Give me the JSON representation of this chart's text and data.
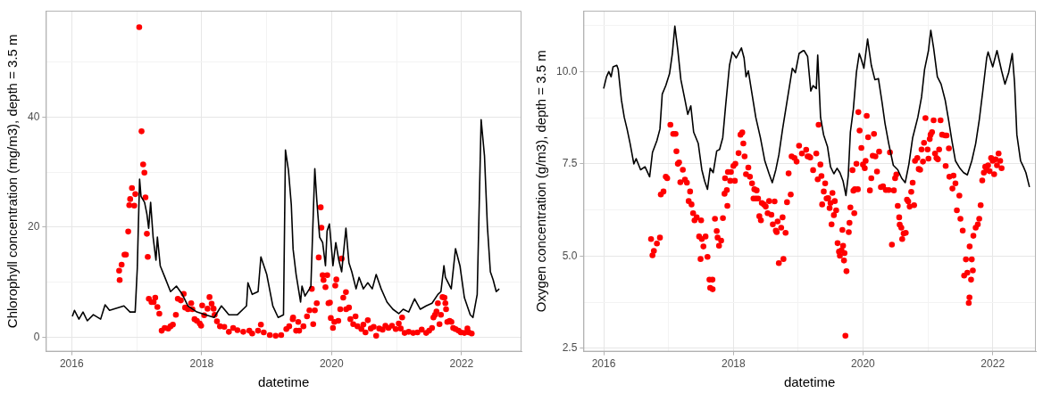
{
  "chart_data": [
    {
      "type": "line",
      "xlabel": "datetime",
      "ylabel": "Chlorophyll concentration (mg/m3), depth = 3.5 m",
      "xlim": [
        "2015-08-09",
        "2022-12-04"
      ],
      "ylim": [
        -2.6,
        59.3
      ],
      "xticks": [
        "2016",
        {
          "value": "2017",
          "label": null
        },
        "2018",
        {
          "value": "2019",
          "label": null
        },
        "2020",
        {
          "value": "2021",
          "label": null
        },
        "2022"
      ],
      "yticks": [
        0,
        {
          "value": 10,
          "label": null
        },
        20,
        {
          "value": 30,
          "label": null
        },
        40,
        {
          "value": 50,
          "label": null
        }
      ],
      "grid": true,
      "series": [
        {
          "type": "line",
          "color": "#000000",
          "marker": "none",
          "x": [
            "2016-01-05",
            "2016-01-17",
            "2016-02-11",
            "2016-03-05",
            "2016-03-29",
            "2016-05-02",
            "2016-06-12",
            "2016-07-07",
            "2016-08-01",
            "2016-09-19",
            "2016-10-21",
            "2016-11-24",
            "2016-12-23",
            "2017-01-04",
            "2017-01-17",
            "2017-01-25",
            "2017-02-14",
            "2017-02-27",
            "2017-03-09",
            "2017-03-20",
            "2017-04-03",
            "2017-04-19",
            "2017-04-27",
            "2017-05-13",
            "2017-06-08",
            "2017-07-10",
            "2017-08-12",
            "2017-09-14",
            "2017-10-16",
            "2017-12-05",
            "2018-01-23",
            "2018-03-12",
            "2018-04-22",
            "2018-06-03",
            "2018-07-21",
            "2018-09-10",
            "2018-09-18",
            "2018-10-12",
            "2018-11-14",
            "2018-11-30",
            "2019-01-02",
            "2019-02-05",
            "2019-03-07",
            "2019-04-06",
            "2019-04-17",
            "2019-05-04",
            "2019-05-20",
            "2019-05-30",
            "2019-06-16",
            "2019-07-11",
            "2019-07-19",
            "2019-08-05",
            "2019-08-30",
            "2019-09-07",
            "2019-09-16",
            "2019-09-29",
            "2019-10-10",
            "2019-10-26",
            "2019-11-12",
            "2019-11-28",
            "2019-12-07",
            "2019-12-20",
            "2020-01-01",
            "2020-01-09",
            "2020-01-25",
            "2020-02-11",
            "2020-02-27",
            "2020-03-22",
            "2020-04-08",
            "2020-04-24",
            "2020-05-18",
            "2020-06-04",
            "2020-06-28",
            "2020-07-23",
            "2020-08-17",
            "2020-09-08",
            "2020-10-06",
            "2020-11-08",
            "2020-12-11",
            "2021-01-13",
            "2021-02-07",
            "2021-03-10",
            "2021-04-12",
            "2021-05-14",
            "2021-06-16",
            "2021-07-19",
            "2021-08-21",
            "2021-09-07",
            "2021-09-24",
            "2021-10-02",
            "2021-11-04",
            "2021-11-28",
            "2021-12-23",
            "2022-01-17",
            "2022-02-19",
            "2022-03-06",
            "2022-03-30",
            "2022-04-21",
            "2022-05-10",
            "2022-05-26",
            "2022-06-12",
            "2022-06-28",
            "2022-07-15",
            "2022-08-01"
          ],
          "values": [
            3.8,
            4.9,
            3.3,
            4.6,
            3.0,
            4.1,
            3.3,
            5.9,
            4.9,
            5.4,
            5.7,
            4.6,
            4.6,
            12.5,
            28.7,
            25.6,
            24.5,
            22.4,
            19.8,
            24.5,
            18.2,
            14,
            18.2,
            13,
            10.9,
            8.3,
            9.3,
            7.8,
            5.7,
            4.6,
            4.1,
            3.6,
            5.7,
            4.1,
            4.1,
            5.7,
            9.9,
            7.8,
            8.3,
            14.6,
            11.4,
            5.7,
            3.6,
            4.1,
            34,
            30.3,
            24,
            16,
            11.4,
            6.4,
            9.3,
            7.5,
            8.8,
            9.3,
            18.2,
            30.6,
            25,
            18.2,
            17.2,
            13,
            19.3,
            20.6,
            16.1,
            13,
            17.2,
            14,
            11.9,
            19.8,
            13.5,
            11.9,
            8.8,
            10.9,
            8.8,
            9.9,
            8.8,
            11.4,
            8.8,
            6.4,
            5.1,
            4.3,
            5.1,
            4.6,
            7.0,
            5.1,
            5.7,
            6.2,
            7.8,
            8.3,
            13,
            10.9,
            8.8,
            16.1,
            13,
            7.2,
            4.1,
            3.6,
            7.8,
            39.5,
            32.9,
            20.3,
            11.9,
            10.4,
            8.3,
            8.8
          ]
        },
        {
          "type": "scatter",
          "color": "#ff0000",
          "marker": "circle",
          "x": [
            "2016-09-24",
            "2016-09-27",
            "2016-10-08",
            "2016-10-24",
            "2016-11-01",
            "2016-11-14",
            "2016-11-20",
            "2016-11-25",
            "2016-12-05",
            "2016-12-18",
            "2016-12-24",
            "2017-01-15",
            "2017-01-28",
            "2017-02-06",
            "2017-02-13",
            "2017-02-19",
            "2017-02-27",
            "2017-03-04",
            "2017-03-10",
            "2017-03-25",
            "2017-04-06",
            "2017-04-15",
            "2017-04-27",
            "2017-05-08",
            "2017-05-21",
            "2017-06-07",
            "2017-06-27",
            "2017-07-10",
            "2017-07-23",
            "2017-08-09",
            "2017-08-20",
            "2017-09-06",
            "2017-09-22",
            "2017-09-30",
            "2017-10-16",
            "2017-11-03",
            "2017-11-10",
            "2017-11-22",
            "2017-12-05",
            "2017-12-21",
            "2017-12-29",
            "2018-01-04",
            "2018-01-15",
            "2018-02-03",
            "2018-02-14",
            "2018-02-26",
            "2018-03-09",
            "2018-03-15",
            "2018-03-28",
            "2018-04-14",
            "2018-05-08",
            "2018-06-03",
            "2018-06-27",
            "2018-07-21",
            "2018-08-23",
            "2018-09-26",
            "2018-10-12",
            "2018-11-14",
            "2018-11-30",
            "2018-12-16",
            "2019-01-19",
            "2019-02-21",
            "2019-03-24",
            "2019-04-22",
            "2019-05-08",
            "2019-05-28",
            "2019-05-30",
            "2019-06-16",
            "2019-06-28",
            "2019-07-03",
            "2019-07-27",
            "2019-08-16",
            "2019-08-30",
            "2019-09-12",
            "2019-09-20",
            "2019-09-29",
            "2019-10-10",
            "2019-10-21",
            "2019-11-01",
            "2019-11-05",
            "2019-11-12",
            "2019-11-17",
            "2019-11-28",
            "2019-12-08",
            "2019-12-15",
            "2019-12-23",
            "2019-12-28",
            "2020-01-09",
            "2020-01-17",
            "2020-01-22",
            "2020-01-28",
            "2020-02-08",
            "2020-02-19",
            "2020-02-27",
            "2020-03-07",
            "2020-03-22",
            "2020-03-23",
            "2020-04-08",
            "2020-04-16",
            "2020-05-02",
            "2020-05-15",
            "2020-05-26",
            "2020-06-17",
            "2020-06-28",
            "2020-07-10",
            "2020-07-23",
            "2020-08-09",
            "2020-08-25",
            "2020-09-08",
            "2020-09-25",
            "2020-10-14",
            "2020-10-30",
            "2020-11-16",
            "2020-12-06",
            "2020-12-27",
            "2021-01-13",
            "2021-01-24",
            "2021-02-01",
            "2021-02-15",
            "2021-03-10",
            "2021-04-04",
            "2021-04-28",
            "2021-05-22",
            "2021-06-16",
            "2021-07-03",
            "2021-07-19",
            "2021-07-27",
            "2021-08-05",
            "2021-08-13",
            "2021-08-21",
            "2021-08-30",
            "2021-09-07",
            "2021-09-16",
            "2021-09-27",
            "2021-10-02",
            "2021-10-06",
            "2021-10-13",
            "2021-10-26",
            "2021-11-05",
            "2021-11-15",
            "2021-11-28",
            "2021-12-15",
            "2021-12-28",
            "2022-01-17",
            "2022-02-03",
            "2022-02-11",
            "2022-02-27"
          ],
          "values": [
            12.1,
            10.4,
            13.2,
            15.0,
            15.0,
            19.2,
            24.0,
            25.1,
            27.1,
            23.9,
            26.0,
            56.3,
            37.4,
            31.4,
            29.9,
            25.4,
            18.8,
            14.6,
            7.0,
            6.4,
            6.4,
            7.2,
            5.5,
            4.3,
            1.2,
            1.7,
            1.6,
            2.0,
            2.3,
            4.1,
            7.0,
            6.7,
            7.9,
            5.4,
            5.1,
            6.2,
            5.1,
            3.3,
            3.0,
            2.5,
            2.1,
            5.8,
            4.0,
            5.2,
            7.3,
            6.1,
            5.2,
            4.1,
            2.9,
            2.0,
            1.9,
            1.0,
            1.7,
            1.3,
            1.0,
            1.2,
            0.7,
            1.2,
            2.3,
            0.9,
            0.4,
            0.3,
            0.4,
            1.5,
            2.0,
            3.3,
            3.6,
            1.2,
            2.8,
            1.2,
            2.0,
            3.8,
            4.9,
            8.8,
            2.4,
            4.9,
            6.2,
            14.5,
            23.6,
            19.9,
            11.3,
            10.4,
            9.1,
            11.3,
            6.2,
            6.3,
            3.5,
            1.7,
            2.8,
            9.4,
            10.5,
            3.0,
            5.1,
            14.3,
            7.2,
            8.2,
            5.1,
            5.4,
            3.3,
            2.4,
            3.8,
            2.0,
            1.5,
            2.3,
            0.9,
            3.1,
            1.6,
            1.9,
            0.3,
            1.6,
            1.4,
            2.1,
            1.7,
            2.1,
            1.5,
            2.5,
            1.6,
            3.6,
            0.8,
            1.0,
            0.8,
            0.9,
            1.4,
            0.8,
            1.2,
            1.7,
            3.6,
            4.1,
            4.7,
            6.2,
            2.4,
            4.1,
            7.3,
            7.2,
            6.2,
            5.1,
            2.8,
            3.0,
            2.8,
            1.7,
            1.5,
            1.2,
            0.9,
            0.8,
            1.6,
            0.9,
            0.7
          ]
        }
      ]
    },
    {
      "type": "line",
      "xlabel": "datetime",
      "ylabel": "Oxygen concentration (g/m3), depth = 3.5 m",
      "xlim": [
        "2015-09-09",
        "2022-09-01"
      ],
      "ylim": [
        2.41,
        11.65
      ],
      "xticks": [
        "2016",
        {
          "value": "2017",
          "label": null
        },
        "2018",
        {
          "value": "2019",
          "label": null
        },
        "2020",
        {
          "value": "2021",
          "label": null
        },
        "2022"
      ],
      "yticks": [
        2.5,
        {
          "value": 3.75,
          "label": null
        },
        {
          "value": 5,
          "label": "5.0"
        },
        {
          "value": 6.25,
          "label": null
        },
        7.5,
        {
          "value": 8.75,
          "label": null
        },
        {
          "value": 10,
          "label": "10.0"
        },
        {
          "value": 11.25,
          "label": null
        }
      ],
      "grid": true,
      "series": [
        {
          "type": "line",
          "color": "#000000",
          "marker": "none",
          "x": [
            "2016-01-01",
            "2016-01-17",
            "2016-01-30",
            "2016-02-12",
            "2016-02-23",
            "2016-03-15",
            "2016-03-23",
            "2016-04-10",
            "2016-04-26",
            "2016-05-12",
            "2016-05-29",
            "2016-06-19",
            "2016-07-02",
            "2016-07-27",
            "2016-08-21",
            "2016-09-16",
            "2016-10-02",
            "2016-10-27",
            "2016-11-13",
            "2016-11-26",
            "2016-12-16",
            "2017-01-06",
            "2017-01-22",
            "2017-02-05",
            "2017-02-22",
            "2017-03-11",
            "2017-04-03",
            "2017-04-19",
            "2017-05-06",
            "2017-05-22",
            "2017-06-17",
            "2017-07-07",
            "2017-07-23",
            "2017-08-08",
            "2017-08-23",
            "2017-09-09",
            "2017-09-29",
            "2017-10-15",
            "2017-11-02",
            "2017-11-18",
            "2017-12-10",
            "2017-12-26",
            "2018-01-17",
            "2018-02-15",
            "2018-03-02",
            "2018-03-13",
            "2018-03-26",
            "2018-04-16",
            "2018-05-07",
            "2018-06-02",
            "2018-06-27",
            "2018-07-21",
            "2018-08-08",
            "2018-08-28",
            "2018-09-14",
            "2018-10-05",
            "2018-10-30",
            "2018-11-29",
            "2018-12-16",
            "2019-01-06",
            "2019-01-30",
            "2019-02-03",
            "2019-02-23",
            "2019-03-13",
            "2019-03-26",
            "2019-04-13",
            "2019-04-21",
            "2019-05-07",
            "2019-05-24",
            "2019-06-15",
            "2019-07-02",
            "2019-07-21",
            "2019-08-08",
            "2019-08-24",
            "2019-09-11",
            "2019-09-27",
            "2019-10-10",
            "2019-10-22",
            "2019-11-08",
            "2019-11-25",
            "2019-12-11",
            "2019-12-20",
            "2020-01-06",
            "2020-01-27",
            "2020-02-17",
            "2020-03-08",
            "2020-03-28",
            "2020-04-18",
            "2020-05-04",
            "2020-05-25",
            "2020-06-20",
            "2020-07-15",
            "2020-08-06",
            "2020-08-26",
            "2020-09-16",
            "2020-10-07",
            "2020-11-05",
            "2020-11-26",
            "2020-12-13",
            "2021-01-04",
            "2021-01-17",
            "2021-02-02",
            "2021-02-23",
            "2021-03-16",
            "2021-04-08",
            "2021-04-29",
            "2021-05-16",
            "2021-06-05",
            "2021-06-30",
            "2021-07-21",
            "2021-08-11",
            "2021-09-05",
            "2021-09-27",
            "2021-10-17",
            "2021-11-06",
            "2021-11-28",
            "2021-12-06",
            "2022-01-01",
            "2022-01-25",
            "2022-02-20",
            "2022-03-11",
            "2022-04-01",
            "2022-04-21",
            "2022-05-04",
            "2022-05-17",
            "2022-06-07",
            "2022-06-23",
            "2022-07-07",
            "2022-07-27"
          ],
          "values": [
            9.54,
            9.86,
            10.0,
            9.86,
            10.13,
            10.17,
            10.06,
            9.23,
            8.76,
            8.44,
            8.05,
            7.5,
            7.64,
            7.34,
            7.42,
            7.15,
            7.81,
            8.13,
            8.44,
            9.39,
            9.62,
            9.94,
            10.49,
            11.23,
            10.57,
            9.78,
            9.23,
            8.84,
            9.07,
            8.36,
            8.05,
            7.34,
            7.03,
            6.81,
            7.38,
            7.26,
            7.85,
            7.89,
            8.21,
            9.07,
            10.17,
            10.53,
            10.37,
            10.64,
            10.37,
            9.86,
            10.02,
            9.39,
            8.76,
            8.21,
            7.58,
            7.23,
            6.99,
            7.34,
            7.74,
            8.44,
            9.19,
            10.09,
            9.97,
            10.49,
            10.57,
            10.57,
            10.41,
            9.47,
            9.62,
            9.54,
            10.45,
            8.76,
            8.29,
            7.97,
            7.42,
            7.23,
            7.38,
            7.26,
            7.03,
            6.64,
            7.18,
            8.36,
            8.99,
            9.98,
            10.49,
            10.37,
            10.09,
            10.88,
            10.17,
            9.78,
            9.81,
            9.15,
            8.6,
            8.05,
            7.46,
            7.34,
            7.11,
            6.99,
            7.5,
            8.21,
            8.76,
            9.31,
            10.06,
            10.57,
            11.12,
            10.64,
            9.86,
            9.66,
            9.23,
            8.64,
            8.13,
            7.58,
            7.38,
            7.26,
            7.2,
            7.58,
            8.05,
            8.68,
            9.47,
            10.37,
            10.53,
            10.13,
            10.57,
            10.02,
            9.66,
            9.98,
            10.49,
            9.7,
            8.29,
            7.58,
            7.42,
            7.26,
            6.87
          ]
        },
        {
          "type": "scatter",
          "color": "#ff0000",
          "marker": "circle",
          "x": [
            "2016-09-24",
            "2016-10-02",
            "2016-10-10",
            "2016-10-27",
            "2016-11-13",
            "2016-11-18",
            "2016-12-03",
            "2016-12-16",
            "2016-12-24",
            "2017-01-11",
            "2017-01-27",
            "2017-02-09",
            "2017-02-14",
            "2017-02-22",
            "2017-03-01",
            "2017-03-08",
            "2017-03-22",
            "2017-04-03",
            "2017-04-14",
            "2017-04-24",
            "2017-05-02",
            "2017-05-10",
            "2017-05-19",
            "2017-05-27",
            "2017-06-08",
            "2017-06-22",
            "2017-06-30",
            "2017-07-03",
            "2017-07-07",
            "2017-07-16",
            "2017-07-28",
            "2017-08-08",
            "2017-08-19",
            "2017-08-23",
            "2017-09-05",
            "2017-09-06",
            "2017-09-19",
            "2017-09-29",
            "2017-10-04",
            "2017-10-12",
            "2017-10-24",
            "2017-11-03",
            "2017-11-12",
            "2017-11-15",
            "2017-11-25",
            "2017-11-28",
            "2017-12-01",
            "2017-12-14",
            "2017-12-18",
            "2018-01-01",
            "2018-01-09",
            "2018-01-12",
            "2018-01-30",
            "2018-02-10",
            "2018-02-20",
            "2018-02-26",
            "2018-03-05",
            "2018-03-13",
            "2018-03-26",
            "2018-04-04",
            "2018-04-16",
            "2018-04-24",
            "2018-04-29",
            "2018-05-07",
            "2018-05-12",
            "2018-05-20",
            "2018-05-27",
            "2018-06-05",
            "2018-06-10",
            "2018-06-22",
            "2018-07-02",
            "2018-07-13",
            "2018-07-21",
            "2018-08-03",
            "2018-08-11",
            "2018-08-21",
            "2018-08-28",
            "2018-09-02",
            "2018-09-07",
            "2018-09-14",
            "2018-09-27",
            "2018-10-05",
            "2018-10-10",
            "2018-10-22",
            "2018-10-30",
            "2018-11-08",
            "2018-11-20",
            "2018-11-25",
            "2018-12-11",
            "2018-12-23",
            "2019-01-06",
            "2019-01-22",
            "2019-02-15",
            "2019-02-23",
            "2019-03-02",
            "2019-03-10",
            "2019-03-26",
            "2019-04-13",
            "2019-04-21",
            "2019-04-26",
            "2019-05-06",
            "2019-05-12",
            "2019-05-16",
            "2019-05-25",
            "2019-06-02",
            "2019-06-10",
            "2019-06-19",
            "2019-06-27",
            "2019-07-02",
            "2019-07-08",
            "2019-07-13",
            "2019-07-21",
            "2019-07-26",
            "2019-08-03",
            "2019-08-11",
            "2019-08-19",
            "2019-08-24",
            "2019-09-02",
            "2019-09-07",
            "2019-09-11",
            "2019-09-16",
            "2019-09-19",
            "2019-09-24",
            "2019-09-30",
            "2019-10-13",
            "2019-10-17",
            "2019-10-22",
            "2019-11-03",
            "2019-11-08",
            "2019-11-13",
            "2019-11-16",
            "2019-11-25",
            "2019-12-03",
            "2019-12-06",
            "2019-12-13",
            "2019-12-23",
            "2020-01-01",
            "2020-01-11",
            "2020-01-16",
            "2020-01-22",
            "2020-01-30",
            "2020-02-09",
            "2020-02-17",
            "2020-02-25",
            "2020-03-03",
            "2020-03-11",
            "2020-03-20",
            "2020-04-01",
            "2020-04-11",
            "2020-04-23",
            "2020-05-09",
            "2020-05-25",
            "2020-06-01",
            "2020-06-12",
            "2020-06-23",
            "2020-06-30",
            "2020-07-07",
            "2020-07-15",
            "2020-07-23",
            "2020-07-26",
            "2020-08-04",
            "2020-08-09",
            "2020-08-17",
            "2020-08-29",
            "2020-09-05",
            "2020-09-12",
            "2020-09-20",
            "2020-09-29",
            "2020-10-07",
            "2020-10-15",
            "2020-10-20",
            "2020-11-02",
            "2020-11-10",
            "2020-11-18",
            "2020-11-26",
            "2020-12-04",
            "2020-12-10",
            "2020-12-18",
            "2020-12-30",
            "2021-01-04",
            "2021-01-11",
            "2021-01-16",
            "2021-01-24",
            "2021-02-02",
            "2021-02-10",
            "2021-02-18",
            "2021-02-26",
            "2021-03-05",
            "2021-03-13",
            "2021-03-22",
            "2021-04-08",
            "2021-04-11",
            "2021-04-16",
            "2021-04-29",
            "2021-05-02",
            "2021-05-19",
            "2021-05-25",
            "2021-06-05",
            "2021-06-13",
            "2021-06-27",
            "2021-07-03",
            "2021-07-16",
            "2021-07-24",
            "2021-08-03",
            "2021-08-11",
            "2021-08-19",
            "2021-08-23",
            "2021-08-24",
            "2021-09-01",
            "2021-09-05",
            "2021-09-11",
            "2021-09-14",
            "2021-09-27",
            "2021-10-09",
            "2021-10-17",
            "2021-10-25",
            "2021-11-03",
            "2021-11-12",
            "2021-11-20",
            "2021-11-28",
            "2021-12-06",
            "2021-12-14",
            "2021-12-23",
            "2022-01-01",
            "2022-01-09",
            "2022-01-17",
            "2022-01-25",
            "2022-02-03",
            "2022-02-12",
            "2022-02-20"
          ],
          "values": [
            5.46,
            5.02,
            5.14,
            5.34,
            5.5,
            6.67,
            6.75,
            7.15,
            7.11,
            8.56,
            8.31,
            8.31,
            7.84,
            7.5,
            7.54,
            7.0,
            7.34,
            7.07,
            6.99,
            6.49,
            6.75,
            6.4,
            6.16,
            5.97,
            6.05,
            5.53,
            4.92,
            5.97,
            5.46,
            5.26,
            5.53,
            4.98,
            4.36,
            4.14,
            4.36,
            4.1,
            6.01,
            5.68,
            5.5,
            5.28,
            5.42,
            6.03,
            6.69,
            7.11,
            6.79,
            6.36,
            7.28,
            7.04,
            7.28,
            7.44,
            7.04,
            7.5,
            7.79,
            8.29,
            8.35,
            8.05,
            7.7,
            7.22,
            7.4,
            7.15,
            6.97,
            6.56,
            6.81,
            6.56,
            6.78,
            6.56,
            6.08,
            5.97,
            6.44,
            6.4,
            6.34,
            6.16,
            6.49,
            6.12,
            5.86,
            6.48,
            5.69,
            5.65,
            5.94,
            4.81,
            5.77,
            6.05,
            4.92,
            5.63,
            6.46,
            7.24,
            6.67,
            7.7,
            7.66,
            7.56,
            7.99,
            7.78,
            7.88,
            7.7,
            7.7,
            7.67,
            7.33,
            7.78,
            7.08,
            8.56,
            7.48,
            7.17,
            6.4,
            6.75,
            6.97,
            6.56,
            6.57,
            6.3,
            6.44,
            5.86,
            6.71,
            6.11,
            6.49,
            6.24,
            5.35,
            5.12,
            5.01,
            5.16,
            5.71,
            5.28,
            4.88,
            5.08,
            2.84,
            4.59,
            5.65,
            5.9,
            6.32,
            7.33,
            6.77,
            6.16,
            6.81,
            7.5,
            6.81,
            8.9,
            8.4,
            7.93,
            7.48,
            7.38,
            7.58,
            8.8,
            8.22,
            6.78,
            7.11,
            7.72,
            8.31,
            7.7,
            7.29,
            7.83,
            6.87,
            6.89,
            6.79,
            6.79,
            7.81,
            5.31,
            6.78,
            7.11,
            7.21,
            6.36,
            6.05,
            5.85,
            5.77,
            5.46,
            5.61,
            5.63,
            6.53,
            6.48,
            6.34,
            6.74,
            6.99,
            6.38,
            7.58,
            7.66,
            7.36,
            7.34,
            7.89,
            7.56,
            8.07,
            8.74,
            7.89,
            7.64,
            8.17,
            8.29,
            8.36,
            8.68,
            7.78,
            7.66,
            7.62,
            7.89,
            8.68,
            8.29,
            8.27,
            7.44,
            8.27,
            7.92,
            7.15,
            6.83,
            7.18,
            6.97,
            6.24,
            6.64,
            6.01,
            5.69,
            4.47,
            4.91,
            4.55,
            3.73,
            3.88,
            5.26,
            4.36,
            4.91,
            4.61,
            5.55,
            5.77,
            5.86,
            6.01,
            6.38,
            7.05,
            7.26,
            7.42,
            7.34,
            7.46,
            7.3,
            7.66,
            7.58,
            7.22,
            7.62,
            7.46,
            7.78,
            7.58,
            7.38
          ]
        }
      ]
    }
  ]
}
